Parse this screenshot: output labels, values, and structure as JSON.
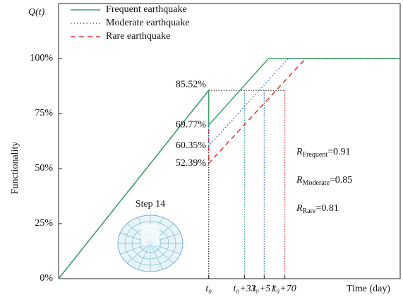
{
  "chart_data": {
    "type": "line",
    "y_title": "Q(t)",
    "ylabel": "Functionality",
    "xlabel": "Time (day)",
    "xlim": [
      -138,
      176
    ],
    "ylim": [
      0,
      125
    ],
    "yticks": [
      {
        "value": 0,
        "label": "0%"
      },
      {
        "value": 25,
        "label": "25%"
      },
      {
        "value": 50,
        "label": "50%"
      },
      {
        "value": 75,
        "label": "75%"
      },
      {
        "value": 100,
        "label": "100%"
      }
    ],
    "xticks": [
      {
        "value": 0,
        "label": "t₀"
      },
      {
        "value": 33,
        "label": "t₀+33"
      },
      {
        "value": 51,
        "label": "t₀+51"
      },
      {
        "value": 70,
        "label": "t₀+70"
      }
    ],
    "reference_line_colors": [
      "#222222",
      "#2a9d8f",
      "#2f6fbf",
      "#e03030"
    ],
    "reference_level": 85.52,
    "legend": "top-left",
    "series": [
      {
        "name": "Frequent earthquake",
        "color": "#3aa36b",
        "style": "solid",
        "x": [
          -138,
          0,
          0,
          55,
          176
        ],
        "values": [
          0,
          85.52,
          69.77,
          100,
          100
        ]
      },
      {
        "name": "Moderate  earthquake",
        "color": "#2f6fbf",
        "style": "dotted",
        "x": [
          -138,
          0,
          0,
          73,
          176
        ],
        "values": [
          0,
          85.52,
          60.35,
          100,
          100
        ]
      },
      {
        "name": "Rare earthquake",
        "color": "#e03030",
        "style": "dashed",
        "x": [
          -138,
          0,
          0,
          89,
          176
        ],
        "values": [
          0,
          85.52,
          52.39,
          100,
          100
        ]
      }
    ],
    "point_labels": [
      {
        "value": 85.52,
        "label": "85.52%"
      },
      {
        "value": 69.77,
        "label": "69.77%"
      },
      {
        "value": 60.35,
        "label": "60.35%"
      },
      {
        "value": 52.39,
        "label": "52.39%"
      }
    ],
    "annotations": [
      {
        "symbol": "R",
        "subscript": "Frequent",
        "text": "=0.91"
      },
      {
        "symbol": "R",
        "subscript": "Moderate",
        "text": "=0.85"
      },
      {
        "symbol": "R",
        "subscript": "Rare",
        "text": "=0.81"
      }
    ],
    "inset_label": "Step 14"
  }
}
